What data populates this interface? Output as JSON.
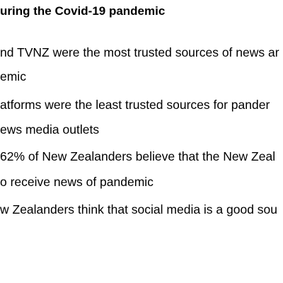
{
  "heading": "uring the Covid-19 pandemic",
  "lines": [
    "nd TVNZ were the most trusted sources of news ar",
    "emic",
    "atforms were the least trusted sources for pander",
    "ews media outlets",
    "62% of New Zealanders believe that the New Zeal",
    "o receive news of pandemic",
    "w Zealanders think that social media is a good sou"
  ]
}
